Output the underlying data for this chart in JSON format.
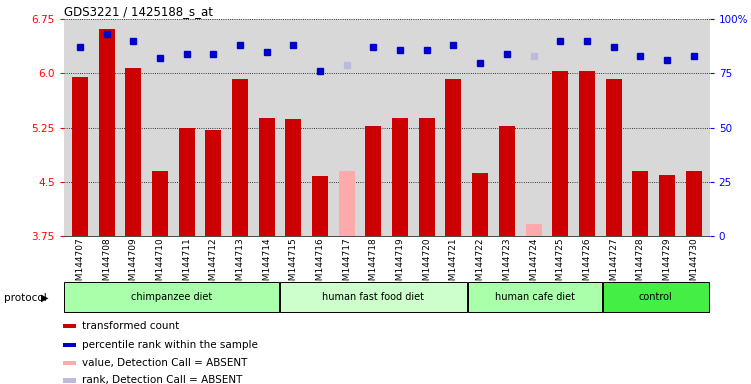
{
  "title": "GDS3221 / 1425188_s_at",
  "samples": [
    "GSM144707",
    "GSM144708",
    "GSM144709",
    "GSM144710",
    "GSM144711",
    "GSM144712",
    "GSM144713",
    "GSM144714",
    "GSM144715",
    "GSM144716",
    "GSM144717",
    "GSM144718",
    "GSM144719",
    "GSM144720",
    "GSM144721",
    "GSM144722",
    "GSM144723",
    "GSM144724",
    "GSM144725",
    "GSM144726",
    "GSM144727",
    "GSM144728",
    "GSM144729",
    "GSM144730"
  ],
  "bar_values": [
    5.95,
    6.62,
    6.08,
    4.65,
    5.25,
    5.22,
    5.93,
    5.38,
    5.37,
    4.58,
    4.65,
    5.28,
    5.38,
    5.38,
    5.93,
    4.62,
    5.28,
    3.92,
    6.04,
    6.04,
    5.92,
    4.65,
    4.6,
    4.65
  ],
  "bar_absent": [
    false,
    false,
    false,
    false,
    false,
    false,
    false,
    false,
    false,
    false,
    true,
    false,
    false,
    false,
    false,
    false,
    false,
    true,
    false,
    false,
    false,
    false,
    false,
    false
  ],
  "rank_values": [
    87,
    93,
    90,
    82,
    84,
    84,
    88,
    85,
    88,
    76,
    79,
    87,
    86,
    86,
    88,
    80,
    84,
    83,
    90,
    90,
    87,
    83,
    81,
    83
  ],
  "rank_absent": [
    false,
    false,
    false,
    false,
    false,
    false,
    false,
    false,
    false,
    false,
    true,
    false,
    false,
    false,
    false,
    false,
    false,
    true,
    false,
    false,
    false,
    false,
    false,
    false
  ],
  "ylim_left": [
    3.75,
    6.75
  ],
  "ylim_right": [
    0,
    100
  ],
  "yticks_left": [
    3.75,
    4.5,
    5.25,
    6.0,
    6.75
  ],
  "yticks_right": [
    0,
    25,
    50,
    75,
    100
  ],
  "bar_color_normal": "#cc0000",
  "bar_color_absent": "#ffaaaa",
  "rank_color_normal": "#0000cc",
  "rank_color_absent": "#bbbbdd",
  "plot_bg_color": "#d8d8d8",
  "protocols": [
    {
      "label": "chimpanzee diet",
      "start": 0,
      "end": 8,
      "color": "#aaffaa"
    },
    {
      "label": "human fast food diet",
      "start": 8,
      "end": 15,
      "color": "#ccffcc"
    },
    {
      "label": "human cafe diet",
      "start": 15,
      "end": 20,
      "color": "#aaffaa"
    },
    {
      "label": "control",
      "start": 20,
      "end": 24,
      "color": "#44ee44"
    }
  ],
  "legend_items": [
    {
      "label": "transformed count",
      "color": "#cc0000"
    },
    {
      "label": "percentile rank within the sample",
      "color": "#0000cc"
    },
    {
      "label": "value, Detection Call = ABSENT",
      "color": "#ffaaaa"
    },
    {
      "label": "rank, Detection Call = ABSENT",
      "color": "#bbbbdd"
    }
  ]
}
